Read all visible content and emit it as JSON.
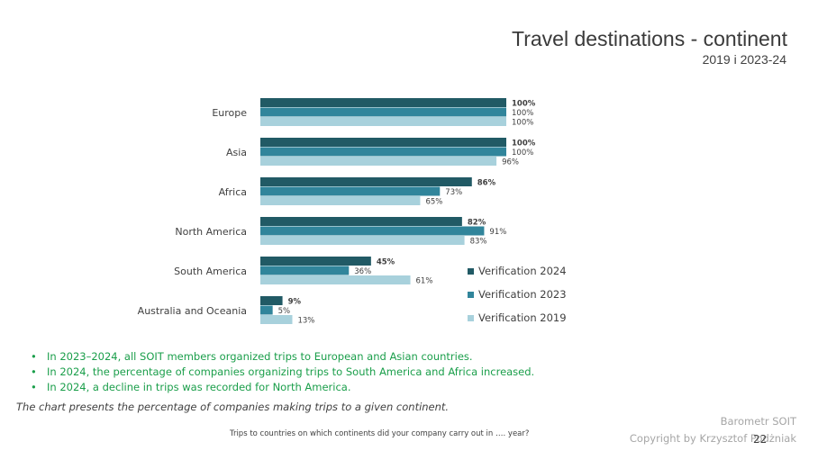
{
  "header": {
    "title": "Travel destinations - continent",
    "subtitle": "2019 i 2023-24"
  },
  "chart_data": {
    "type": "bar",
    "orientation": "horizontal",
    "categories": [
      "Europe",
      "Asia",
      "Africa",
      "North America",
      "South America",
      "Australia and Oceania"
    ],
    "series": [
      {
        "name": "Verification 2024",
        "values": [
          100,
          100,
          86,
          82,
          45,
          9
        ],
        "color": "#215a65",
        "label_bold": true
      },
      {
        "name": "Verification 2023",
        "values": [
          100,
          100,
          73,
          91,
          36,
          5
        ],
        "color": "#31859b",
        "label_bold": false
      },
      {
        "name": "Verification 2019",
        "values": [
          100,
          96,
          65,
          83,
          61,
          13
        ],
        "color": "#a8d1dc",
        "label_bold": false
      }
    ],
    "value_suffix": "%",
    "xlim": [
      0,
      100
    ],
    "legend_position": "lower-right",
    "grid": false
  },
  "bullets": [
    "In 2023–2024, all SOIT members organized trips to European and Asian countries.",
    "In 2024, the percentage of companies organizing trips to South America and Africa increased.",
    "In 2024, a decline in trips was recorded for North America."
  ],
  "note": "The chart presents the percentage of companies making trips to a given continent.",
  "question": "Trips to countries on which continents did your company carry out in …. year?",
  "footer": {
    "brand": "Barometr SOIT",
    "copyright": "Copyright by Krzysztof Podżniak",
    "page_number": "22"
  }
}
